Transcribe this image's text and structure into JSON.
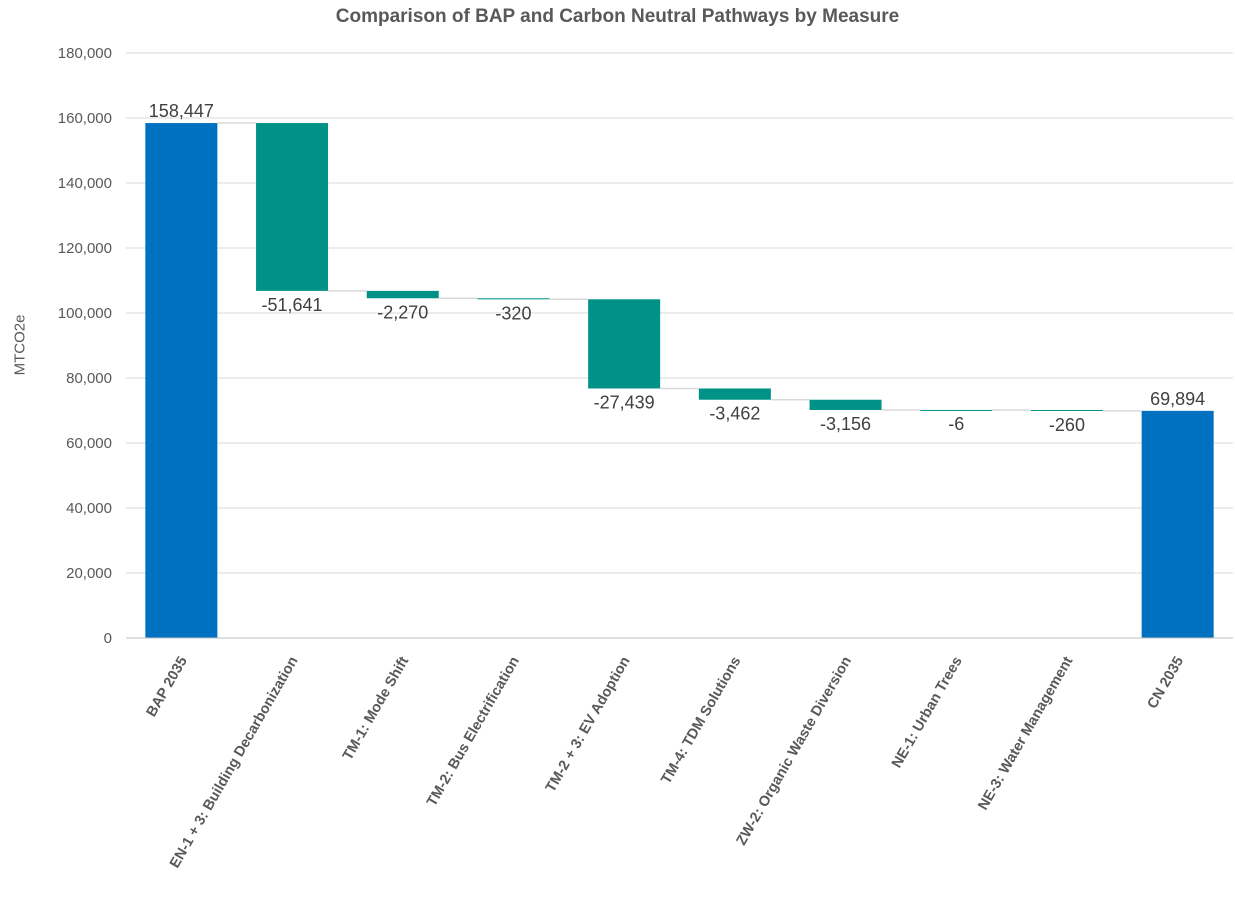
{
  "chart_data": {
    "type": "bar",
    "subtype": "waterfall",
    "title": "Comparison of BAP and Carbon Neutral Pathways by Measure",
    "xlabel": "",
    "ylabel": "MTCO2e",
    "ylim": [
      0,
      180000
    ],
    "yticks": [
      0,
      20000,
      40000,
      60000,
      80000,
      100000,
      120000,
      140000,
      160000,
      180000
    ],
    "ytick_labels": [
      "0",
      "20,000",
      "40,000",
      "60,000",
      "80,000",
      "100,000",
      "120,000",
      "140,000",
      "160,000",
      "180,000"
    ],
    "grid": true,
    "legend": "none",
    "categories": [
      "BAP 2035",
      "EN-1 + 3: Building Decarbonization",
      "TM-1: Mode Shift",
      "TM-2: Bus Electrification",
      "TM-2 + 3: EV Adoption",
      "TM-4: TDM Solutions",
      "ZW-2: Organic Waste Diversion",
      "NE-1: Urban Trees",
      "NE-3: Water Management",
      "CN 2035"
    ],
    "values": [
      158447,
      -51641,
      -2270,
      -320,
      -27439,
      -3462,
      -3156,
      -6,
      -260,
      69894
    ],
    "data_labels": [
      "158,447",
      "-51,641",
      "-2,270",
      "-320",
      "-27,439",
      "-3,462",
      "-3,156",
      "-6",
      "-260",
      "69,894"
    ],
    "bar_kinds": [
      "total",
      "delta",
      "delta",
      "delta",
      "delta",
      "delta",
      "delta",
      "delta",
      "delta",
      "total"
    ],
    "colors": {
      "total": "#0070C0",
      "delta": "#009286",
      "grid": "#d9d9d9",
      "connector": "#d9d9d9",
      "text": "#595959",
      "label": "#404040"
    }
  }
}
